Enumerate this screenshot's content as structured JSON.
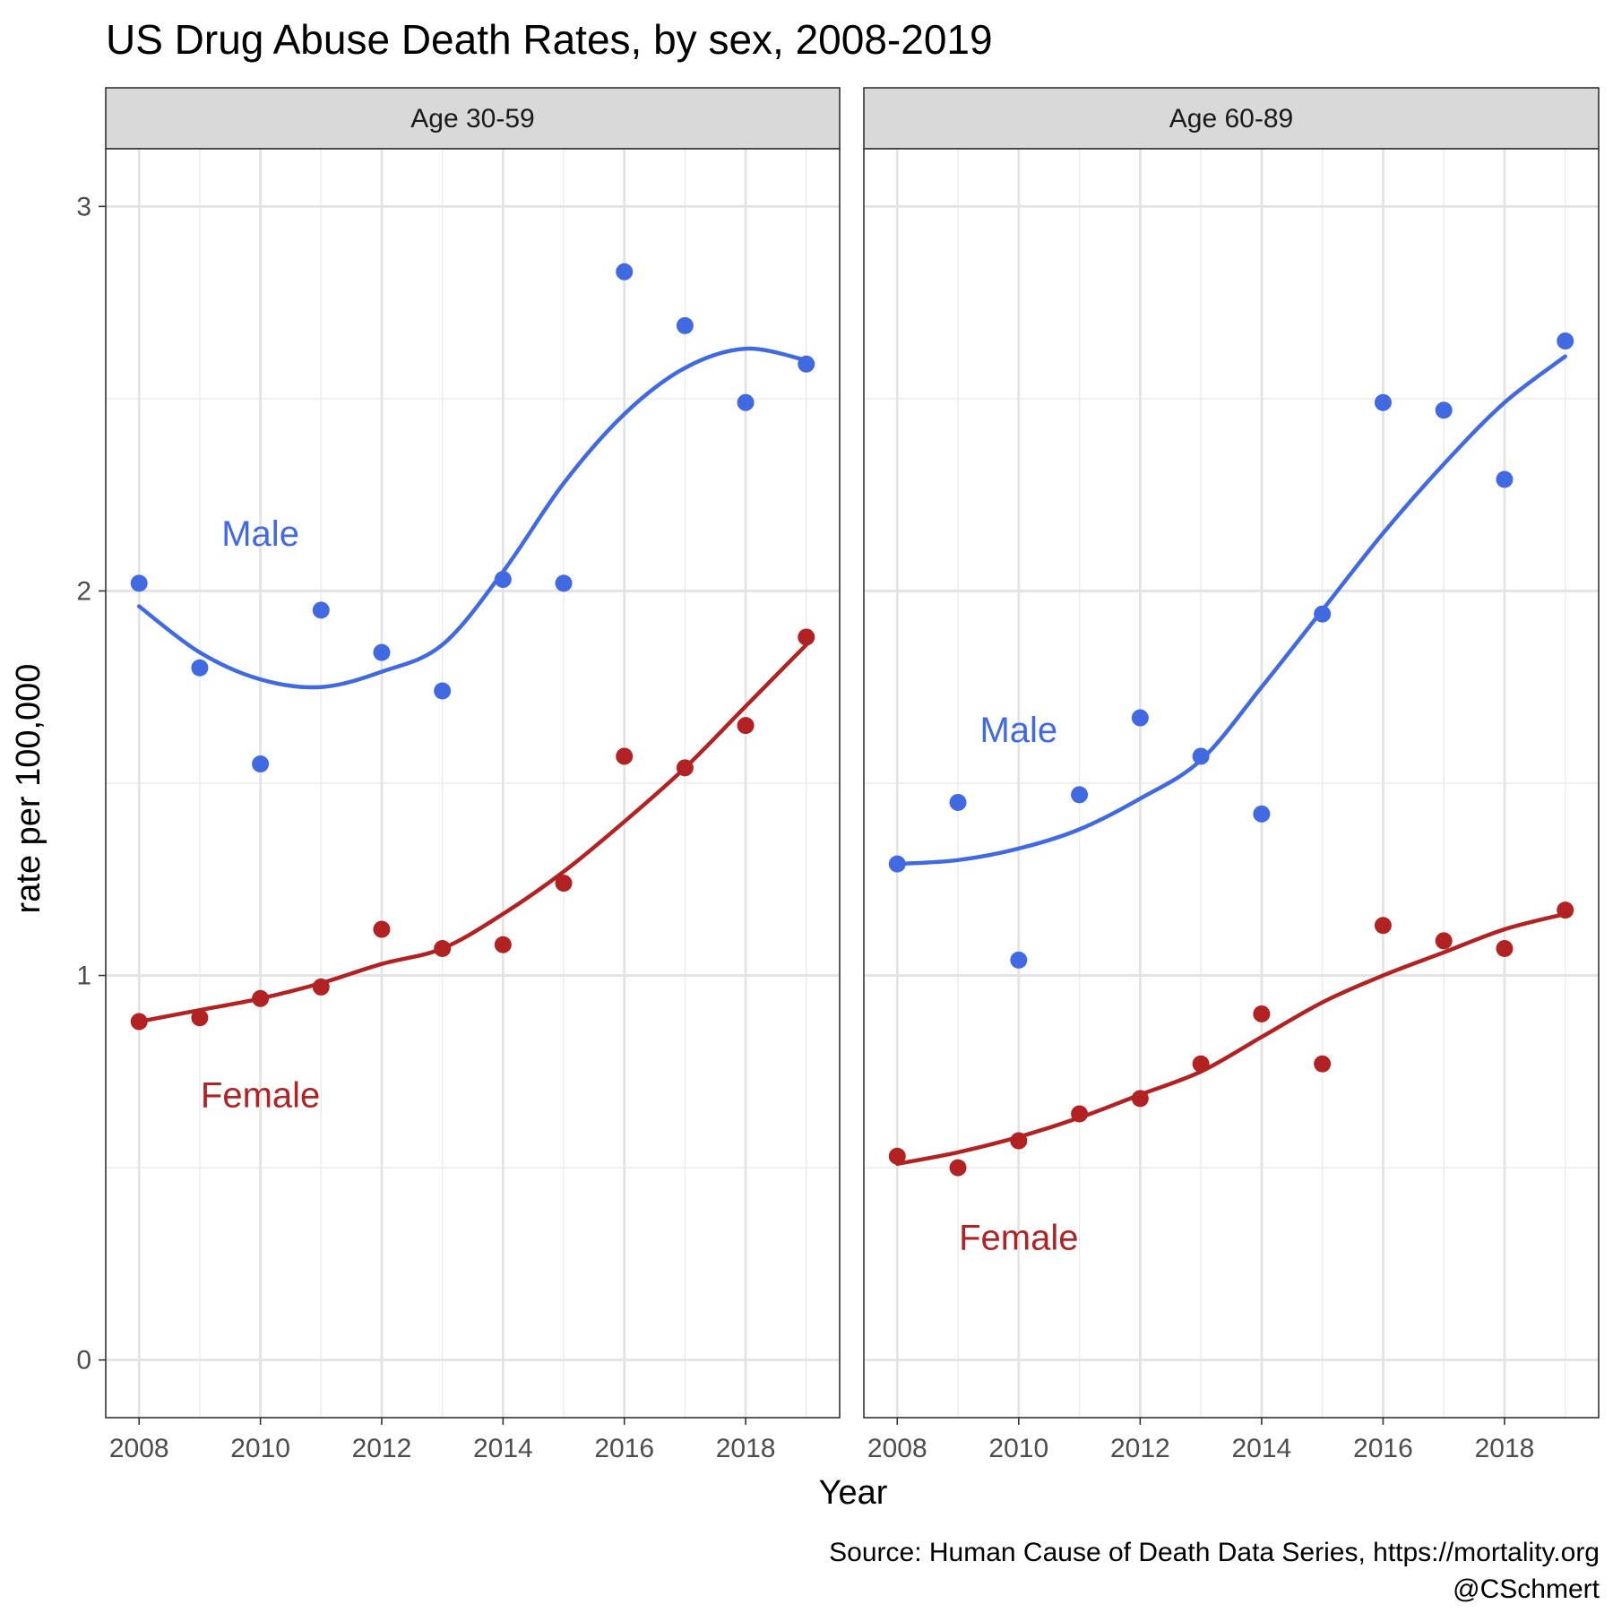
{
  "chart_data": {
    "type": "scatter",
    "title": "US Drug Abuse Death Rates, by sex, 2008-2019",
    "xlabel": "Year",
    "ylabel": "rate per 100,000",
    "caption_lines": [
      "Source: Human Cause of Death Data Series, https://mortality.org",
      "@CSchmert"
    ],
    "xlim": [
      2007.45,
      2019.55
    ],
    "ylim": [
      -0.15,
      3.15
    ],
    "x_ticks": [
      2008,
      2010,
      2012,
      2014,
      2016,
      2018
    ],
    "y_ticks": [
      0,
      1,
      2,
      3
    ],
    "grid": true,
    "smoothed_trend_lines": true,
    "colors": {
      "Male": "#4169E1",
      "Female": "#B22222"
    },
    "panels": [
      {
        "strip": "Age 30-59",
        "labels": [
          {
            "series": "Male",
            "text": "Male",
            "x": 2010,
            "y": 2.15
          },
          {
            "series": "Female",
            "text": "Female",
            "x": 2010,
            "y": 0.69
          }
        ],
        "series": [
          {
            "name": "Male",
            "x": [
              2008,
              2009,
              2010,
              2011,
              2012,
              2013,
              2014,
              2015,
              2016,
              2017,
              2018,
              2019
            ],
            "values": [
              2.02,
              1.8,
              1.55,
              1.95,
              1.84,
              1.74,
              2.03,
              2.02,
              2.83,
              2.69,
              2.49,
              2.59
            ],
            "trend": [
              1.96,
              1.84,
              1.77,
              1.75,
              1.79,
              1.86,
              2.05,
              2.28,
              2.46,
              2.58,
              2.63,
              2.6
            ]
          },
          {
            "name": "Female",
            "x": [
              2008,
              2009,
              2010,
              2011,
              2012,
              2013,
              2014,
              2015,
              2016,
              2017,
              2018,
              2019
            ],
            "values": [
              0.88,
              0.89,
              0.94,
              0.97,
              1.12,
              1.07,
              1.08,
              1.24,
              1.57,
              1.54,
              1.65,
              1.88
            ],
            "trend": [
              0.88,
              0.91,
              0.94,
              0.98,
              1.03,
              1.07,
              1.16,
              1.27,
              1.4,
              1.54,
              1.7,
              1.86
            ]
          }
        ]
      },
      {
        "strip": "Age 60-89",
        "labels": [
          {
            "series": "Male",
            "text": "Male",
            "x": 2010,
            "y": 1.64
          },
          {
            "series": "Female",
            "text": "Female",
            "x": 2010,
            "y": 0.32
          }
        ],
        "series": [
          {
            "name": "Male",
            "x": [
              2008,
              2009,
              2010,
              2011,
              2012,
              2013,
              2014,
              2015,
              2016,
              2017,
              2018,
              2019
            ],
            "values": [
              1.29,
              1.45,
              1.04,
              1.47,
              1.67,
              1.57,
              1.42,
              1.94,
              2.49,
              2.47,
              2.29,
              2.65
            ],
            "trend": [
              1.29,
              1.3,
              1.33,
              1.38,
              1.46,
              1.56,
              1.75,
              1.95,
              2.15,
              2.33,
              2.49,
              2.61
            ]
          },
          {
            "name": "Female",
            "x": [
              2008,
              2009,
              2010,
              2011,
              2012,
              2013,
              2014,
              2015,
              2016,
              2017,
              2018,
              2019
            ],
            "values": [
              0.53,
              0.5,
              0.57,
              0.64,
              0.68,
              0.77,
              0.9,
              0.77,
              1.13,
              1.09,
              1.07,
              1.17
            ],
            "trend": [
              0.51,
              0.54,
              0.58,
              0.63,
              0.69,
              0.75,
              0.84,
              0.93,
              1.0,
              1.06,
              1.12,
              1.16
            ]
          }
        ]
      }
    ]
  }
}
